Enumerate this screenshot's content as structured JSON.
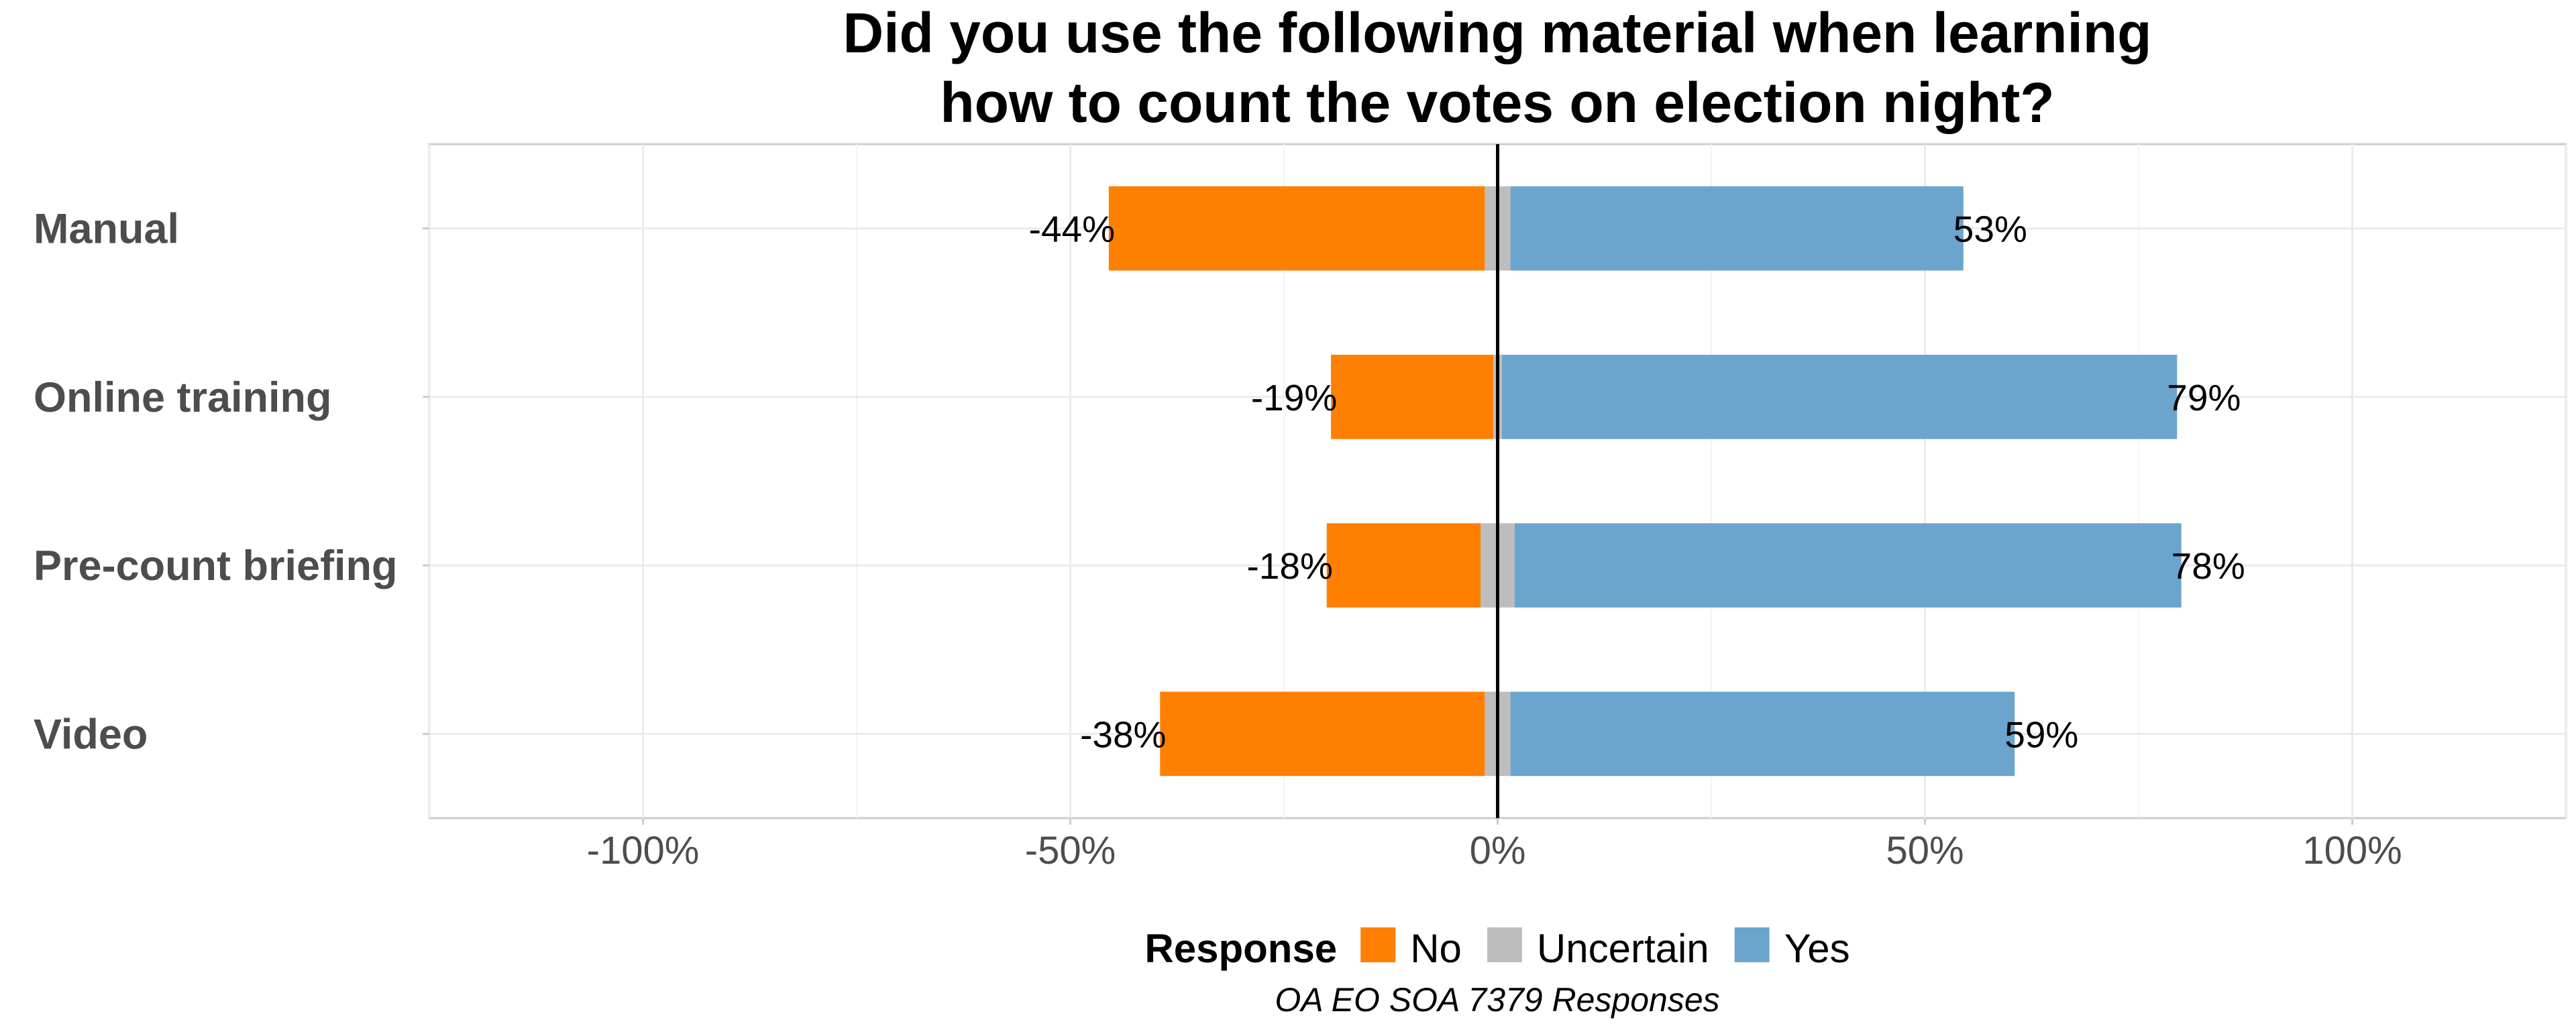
{
  "chart_data": {
    "type": "bar",
    "orientation": "horizontal-diverging",
    "title": [
      "Did you use the following material when learning",
      "how to count the votes on election night?"
    ],
    "categories": [
      "Manual",
      "Online training",
      "Pre-count briefing",
      "Video"
    ],
    "series": [
      {
        "name": "No",
        "values": [
          -44,
          -19,
          -18,
          -38
        ],
        "color": "#ff7f00"
      },
      {
        "name": "Uncertain",
        "values": [
          3,
          1,
          4,
          3
        ],
        "color": "#bdbdbd"
      },
      {
        "name": "Yes",
        "values": [
          53,
          79,
          78,
          59
        ],
        "color": "#6ba5cd"
      }
    ],
    "no_labels": [
      "-44%",
      "-19%",
      "-18%",
      "-38%"
    ],
    "yes_labels": [
      "53%",
      "79%",
      "78%",
      "59%"
    ],
    "x_ticks": [
      -100,
      -50,
      0,
      50,
      100
    ],
    "x_tick_labels": [
      "-100%",
      "-50%",
      "0%",
      "50%",
      "100%"
    ],
    "xlim": [
      -125,
      125
    ],
    "grid": true,
    "legend": {
      "title": "Response",
      "position": "bottom",
      "items": [
        "No",
        "Uncertain",
        "Yes"
      ]
    },
    "caption": "OA EO SOA 7379 Responses"
  }
}
